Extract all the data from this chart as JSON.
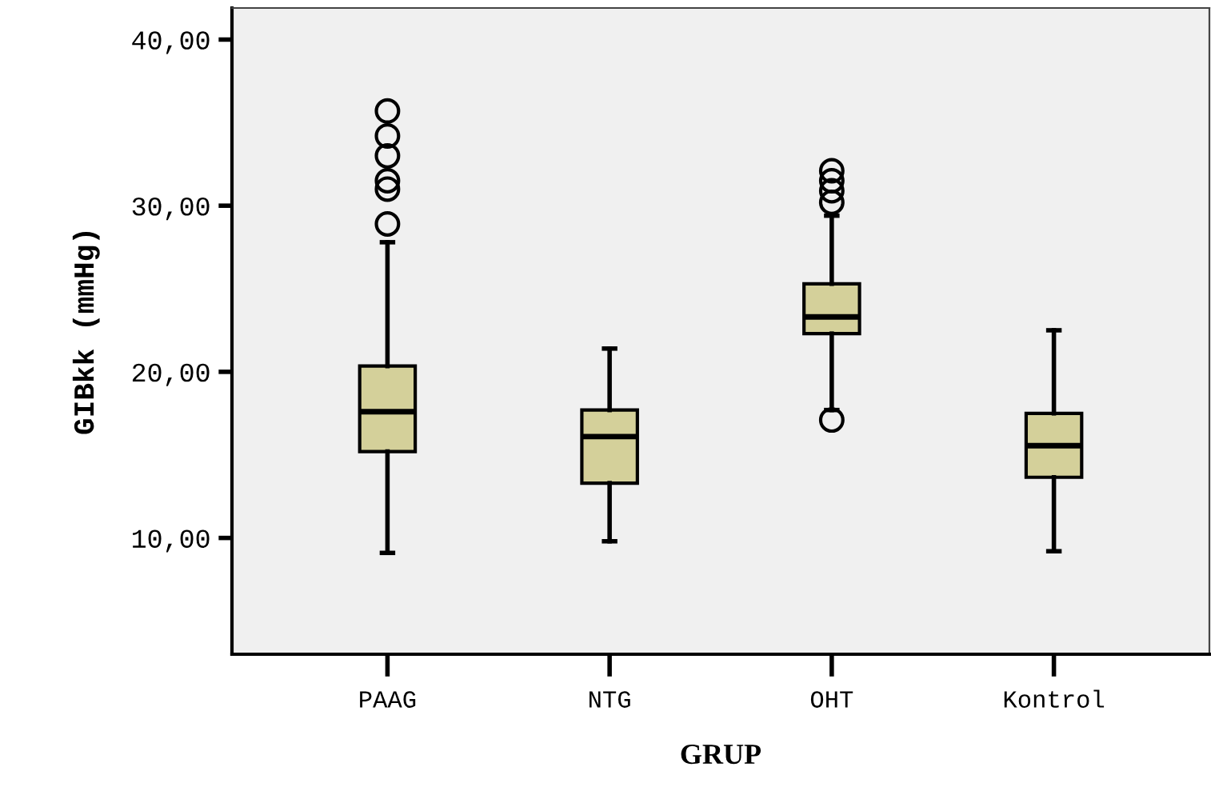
{
  "chart_data": {
    "type": "box",
    "xlabel": "GRUP",
    "ylabel": "GIBkk (mmHg)",
    "categories": [
      "PAAG",
      "NTG",
      "OHT",
      "Kontrol"
    ],
    "color": "#d4d09a",
    "boxes": [
      {
        "low": 9.1,
        "q1": 15.2,
        "median": 17.6,
        "q3": 20.35,
        "high": 27.8,
        "outliers": [
          35.7,
          34.2,
          33.0,
          31.5,
          31.0,
          28.9
        ]
      },
      {
        "low": 9.8,
        "q1": 13.3,
        "median": 16.1,
        "q3": 17.7,
        "high": 21.4
      },
      {
        "low": 17.7,
        "q1": 22.3,
        "median": 23.3,
        "q3": 25.3,
        "high": 29.4,
        "outliers": [
          32.1,
          31.5,
          30.9,
          30.2,
          17.1
        ]
      },
      {
        "low": 9.2,
        "q1": 13.65,
        "median": 15.55,
        "q3": 17.5,
        "high": 22.5
      }
    ],
    "ylim": [
      3,
      41.9
    ],
    "yticks": [
      {
        "value": 10,
        "label": "10,00"
      },
      {
        "value": 20,
        "label": "20,00"
      },
      {
        "value": 30,
        "label": "30,00"
      },
      {
        "value": 40,
        "label": "40,00"
      }
    ],
    "grid": false
  }
}
